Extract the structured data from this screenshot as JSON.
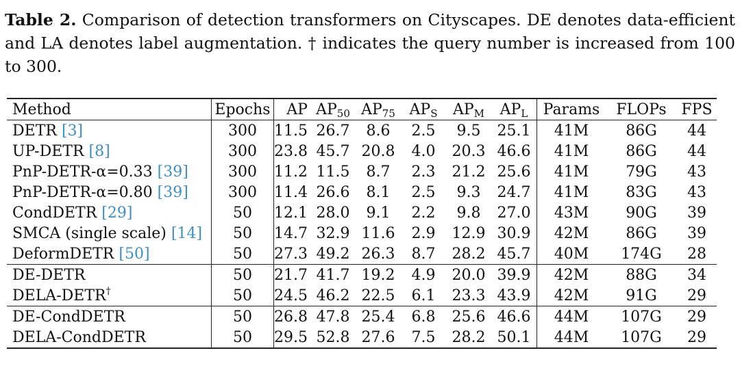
{
  "caption": {
    "label": "Table 2.",
    "text": "Comparison of detection transformers on Cityscapes. DE denotes data-efficient and LA denotes label augmentation. † indicates the query number is increased from 100 to 300."
  },
  "table": {
    "headers": {
      "method": "Method",
      "epochs": "Epochs",
      "ap": "AP",
      "ap50_base": "AP",
      "ap50_sub": "50",
      "ap75_base": "AP",
      "ap75_sub": "75",
      "aps_base": "AP",
      "aps_sub": "S",
      "apm_base": "AP",
      "apm_sub": "M",
      "apl_base": "AP",
      "apl_sub": "L",
      "params": "Params",
      "flops": "FLOPs",
      "fps": "FPS"
    },
    "rows": [
      {
        "method": "DETR",
        "ref": "[3]",
        "sup": "",
        "epochs": "300",
        "ap": "11.5",
        "ap50": "26.7",
        "ap75": "8.6",
        "aps": "2.5",
        "apm": "9.5",
        "apl": "25.1",
        "params": "41M",
        "flops": "86G",
        "fps": "44"
      },
      {
        "method": "UP-DETR",
        "ref": "[8]",
        "sup": "",
        "epochs": "300",
        "ap": "23.8",
        "ap50": "45.7",
        "ap75": "20.8",
        "aps": "4.0",
        "apm": "20.3",
        "apl": "46.6",
        "params": "41M",
        "flops": "86G",
        "fps": "44"
      },
      {
        "method": "PnP-DETR-α=0.33",
        "ref": "[39]",
        "sup": "",
        "epochs": "300",
        "ap": "11.2",
        "ap50": "11.5",
        "ap75": "8.7",
        "aps": "2.3",
        "apm": "21.2",
        "apl": "25.6",
        "params": "41M",
        "flops": "79G",
        "fps": "43"
      },
      {
        "method": "PnP-DETR-α=0.80",
        "ref": "[39]",
        "sup": "",
        "epochs": "300",
        "ap": "11.4",
        "ap50": "26.6",
        "ap75": "8.1",
        "aps": "2.5",
        "apm": "9.3",
        "apl": "24.7",
        "params": "41M",
        "flops": "83G",
        "fps": "43"
      },
      {
        "method": "CondDETR",
        "ref": "[29]",
        "sup": "",
        "epochs": "50",
        "ap": "12.1",
        "ap50": "28.0",
        "ap75": "9.1",
        "aps": "2.2",
        "apm": "9.8",
        "apl": "27.0",
        "params": "43M",
        "flops": "90G",
        "fps": "39"
      },
      {
        "method": "SMCA (single scale)",
        "ref": "[14]",
        "sup": "",
        "epochs": "50",
        "ap": "14.7",
        "ap50": "32.9",
        "ap75": "11.6",
        "aps": "2.9",
        "apm": "12.9",
        "apl": "30.9",
        "params": "42M",
        "flops": "86G",
        "fps": "39"
      },
      {
        "method": "DeformDETR",
        "ref": "[50]",
        "sup": "",
        "epochs": "50",
        "ap": "27.3",
        "ap50": "49.2",
        "ap75": "26.3",
        "aps": "8.7",
        "apm": "28.2",
        "apl": "45.7",
        "params": "40M",
        "flops": "174G",
        "fps": "28"
      },
      {
        "method": "DE-DETR",
        "ref": "",
        "sup": "",
        "epochs": "50",
        "ap": "21.7",
        "ap50": "41.7",
        "ap75": "19.2",
        "aps": "4.9",
        "apm": "20.0",
        "apl": "39.9",
        "params": "42M",
        "flops": "88G",
        "fps": "34"
      },
      {
        "method": "DELA-DETR",
        "ref": "",
        "sup": "†",
        "epochs": "50",
        "ap": "24.5",
        "ap50": "46.2",
        "ap75": "22.5",
        "aps": "6.1",
        "apm": "23.3",
        "apl": "43.9",
        "params": "42M",
        "flops": "91G",
        "fps": "29"
      },
      {
        "method": "DE-CondDETR",
        "ref": "",
        "sup": "",
        "epochs": "50",
        "ap": "26.8",
        "ap50": "47.8",
        "ap75": "25.4",
        "aps": "6.8",
        "apm": "25.6",
        "apl": "46.6",
        "params": "44M",
        "flops": "107G",
        "fps": "29"
      },
      {
        "method": "DELA-CondDETR",
        "ref": "",
        "sup": "",
        "epochs": "50",
        "ap": "29.5",
        "ap50": "52.8",
        "ap75": "27.6",
        "aps": "7.5",
        "apm": "28.2",
        "apl": "50.1",
        "params": "44M",
        "flops": "107G",
        "fps": "29"
      }
    ]
  }
}
